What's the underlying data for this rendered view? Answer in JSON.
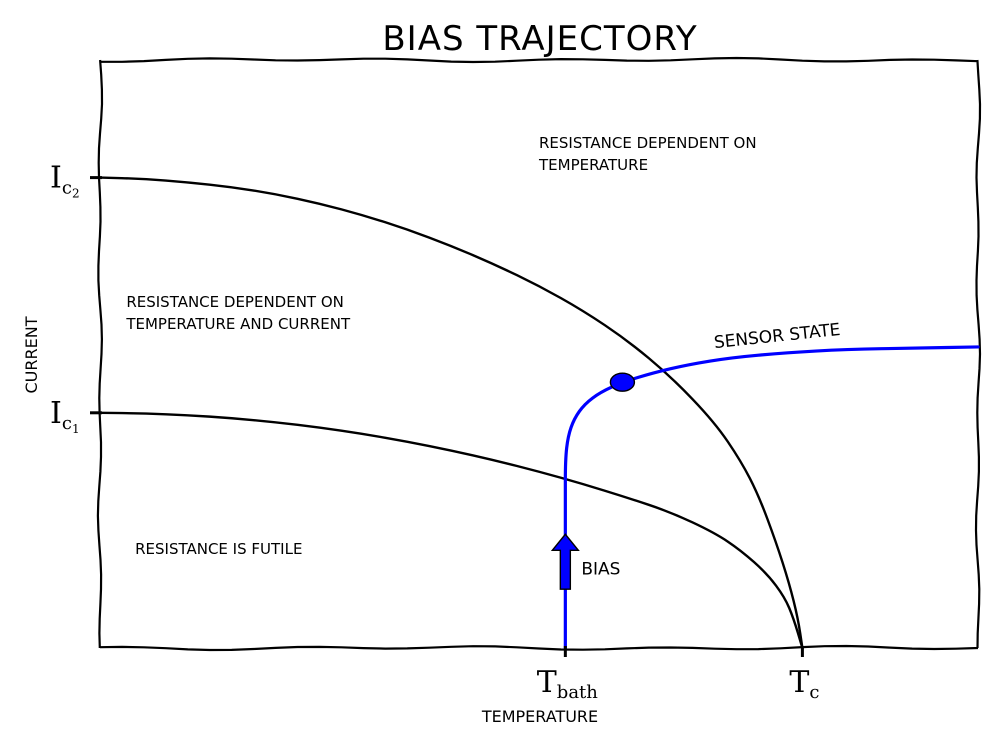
{
  "chart_data": {
    "type": "line",
    "title": "BIAS TRAJECTORY",
    "xlabel": "TEMPERATURE",
    "ylabel": "CURRENT",
    "xlim": [
      0,
      10
    ],
    "ylim": [
      0,
      10
    ],
    "grid": false,
    "ticks": {
      "x": [
        {
          "main": "T",
          "sub": "bath",
          "value": 5.3
        },
        {
          "main": "T",
          "sub": "c",
          "value": 8.0
        }
      ],
      "y": [
        {
          "main": "I",
          "sub": "c",
          "subsub": "1",
          "value": 4.0
        },
        {
          "main": "I",
          "sub": "c",
          "subsub": "2",
          "value": 8.0
        }
      ]
    },
    "series": [
      {
        "color": "#000000",
        "x": [
          0,
          0.5,
          1,
          1.5,
          2,
          2.5,
          3,
          3.5,
          4,
          4.5,
          5,
          5.5,
          6,
          6.5,
          7,
          7.3,
          7.6,
          7.8,
          7.9,
          8.0
        ],
        "y": [
          4.0,
          3.99,
          3.96,
          3.91,
          3.84,
          3.75,
          3.64,
          3.51,
          3.36,
          3.19,
          3.0,
          2.79,
          2.56,
          2.31,
          1.96,
          1.66,
          1.26,
          0.86,
          0.5,
          0.0
        ]
      },
      {
        "color": "#000000",
        "x": [
          0,
          0.5,
          1,
          1.5,
          2,
          2.5,
          3,
          3.5,
          4,
          4.5,
          5,
          5.5,
          6,
          6.5,
          7,
          7.3,
          7.5,
          7.7,
          7.85,
          7.95,
          8.0
        ],
        "y": [
          8.0,
          7.98,
          7.92,
          7.84,
          7.72,
          7.56,
          7.36,
          7.12,
          6.84,
          6.52,
          6.16,
          5.74,
          5.24,
          4.62,
          3.84,
          3.18,
          2.6,
          1.8,
          1.1,
          0.5,
          0.0
        ]
      },
      {
        "color": "#0000ff",
        "x": [
          5.3,
          5.3,
          5.3,
          5.3,
          5.33,
          5.4,
          5.52,
          5.7,
          5.95,
          6.3,
          6.7,
          7.2,
          7.8,
          8.5,
          9.3,
          10.0
        ],
        "y": [
          0.0,
          1.5,
          2.5,
          3.2,
          3.6,
          3.9,
          4.15,
          4.35,
          4.52,
          4.68,
          4.82,
          4.94,
          5.02,
          5.08,
          5.1,
          5.12
        ]
      }
    ],
    "marker": {
      "x": 5.95,
      "y": 4.52,
      "color": "#0000ff"
    },
    "arrow": {
      "x": 5.3,
      "y_from": 1.0,
      "y_to": 1.9,
      "label": "BIAS",
      "color": "#0000ff"
    },
    "annotations": [
      {
        "lines": [
          "RESISTANCE DEPENDENT ON",
          "TEMPERATURE"
        ],
        "x": 5.0,
        "y": 8.5
      },
      {
        "lines": [
          "RESISTANCE DEPENDENT ON",
          "TEMPERATURE AND CURRENT"
        ],
        "x": 0.3,
        "y": 5.8
      },
      {
        "lines": [
          "RESISTANCE IS FUTILE"
        ],
        "x": 0.4,
        "y": 1.6
      },
      {
        "lines": [
          "SENSOR STATE"
        ],
        "x": 7.0,
        "y": 5.1,
        "rotate": -6
      }
    ]
  }
}
